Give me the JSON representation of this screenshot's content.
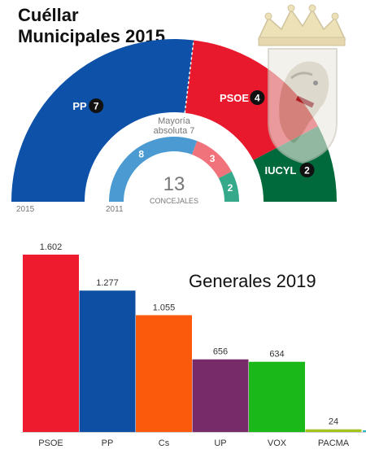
{
  "page": {
    "title_line1": "Cuéllar",
    "title_line2": "Municipales 2015"
  },
  "municipal": {
    "total_seats": "13",
    "total_label": "CONCEJALES",
    "majority_line1": "Mayoría",
    "majority_line2": "absoluta 7",
    "outer_year": "2015",
    "inner_year": "2011",
    "outer": [
      {
        "party": "PP",
        "seats": 7,
        "color": "#0d52a8"
      },
      {
        "party": "PSOE",
        "seats": 4,
        "color": "#e8192c"
      },
      {
        "party": "IUCYL",
        "seats": 2,
        "color": "#006a3c"
      }
    ],
    "inner": [
      {
        "party": "PP",
        "seats": 8,
        "color": "#4b9bd2"
      },
      {
        "party": "PSOE",
        "seats": 3,
        "color": "#f0737b"
      },
      {
        "party": "IUCYL",
        "seats": 2,
        "color": "#36a98b"
      }
    ],
    "crest": {
      "icon": "coat-of-arms-icon"
    }
  },
  "chart_data": {
    "type": "bar",
    "title": "Generales 2019",
    "categories": [
      "PSOE",
      "PP",
      "Cs",
      "UP",
      "VOX",
      "PACMA"
    ],
    "values": [
      1602,
      1277,
      1055,
      656,
      634,
      24
    ],
    "value_labels": [
      "1.602",
      "1.277",
      "1.055",
      "656",
      "634",
      "24"
    ],
    "colors": [
      "#ee1b2e",
      "#0e4fa3",
      "#fb5a0c",
      "#772b68",
      "#1bb81a",
      "#a4c31c"
    ],
    "ylim": [
      0,
      1602
    ],
    "grid": false,
    "legend": "none"
  }
}
